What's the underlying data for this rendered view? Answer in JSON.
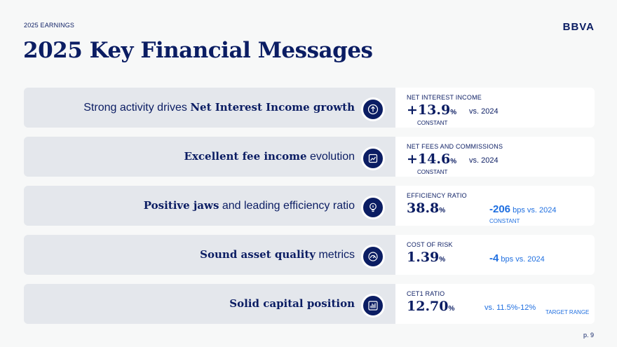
{
  "header": {
    "tag": "2025 EARNINGS",
    "logo": "BBVA",
    "title": "2025 Key Financial Messages"
  },
  "rows": [
    {
      "msg_pre": "Strong activity drives ",
      "msg_bold": "Net Interest Income growth",
      "msg_post": "",
      "icon": "arrow-up-icon",
      "label": "NET INTEREST INCOME",
      "value": "+13.9",
      "unit": "%",
      "compare": "vs. 2024",
      "sub": "CONSTANT"
    },
    {
      "msg_pre": "",
      "msg_bold": "Excellent fee income",
      "msg_post": " evolution",
      "icon": "chart-growth-icon",
      "label": "NET FEES AND COMMISSIONS",
      "value": "+14.6",
      "unit": "%",
      "compare": "vs. 2024",
      "sub": "CONSTANT"
    },
    {
      "msg_pre": "",
      "msg_bold": "Positive jaws",
      "msg_post": " and leading efficiency ratio",
      "icon": "lightbulb-icon",
      "label": "EFFICIENCY RATIO",
      "value": "38.8",
      "unit": "%",
      "delta_val": "-206",
      "delta_text": " bps vs. 2024",
      "sub": "CONSTANT"
    },
    {
      "msg_pre": "",
      "msg_bold": "Sound asset quality",
      "msg_post": " metrics",
      "icon": "gauge-icon",
      "label": "COST OF RISK",
      "value": "1.39",
      "unit": "%",
      "delta_val": "-4",
      "delta_text": " bps vs. 2024"
    },
    {
      "msg_pre": "",
      "msg_bold": "Solid capital position",
      "msg_post": "",
      "icon": "bar-chart-icon",
      "label": "CET1 RATIO",
      "value": "12.70",
      "unit": "%",
      "range": "vs. 11.5%-12%",
      "range_note": "TARGET RANGE"
    }
  ],
  "footer": {
    "page": "p. 9"
  },
  "colors": {
    "navy": "#0b1d63",
    "accent": "#1f6fe0",
    "row_bg": "#e4e7ec"
  }
}
